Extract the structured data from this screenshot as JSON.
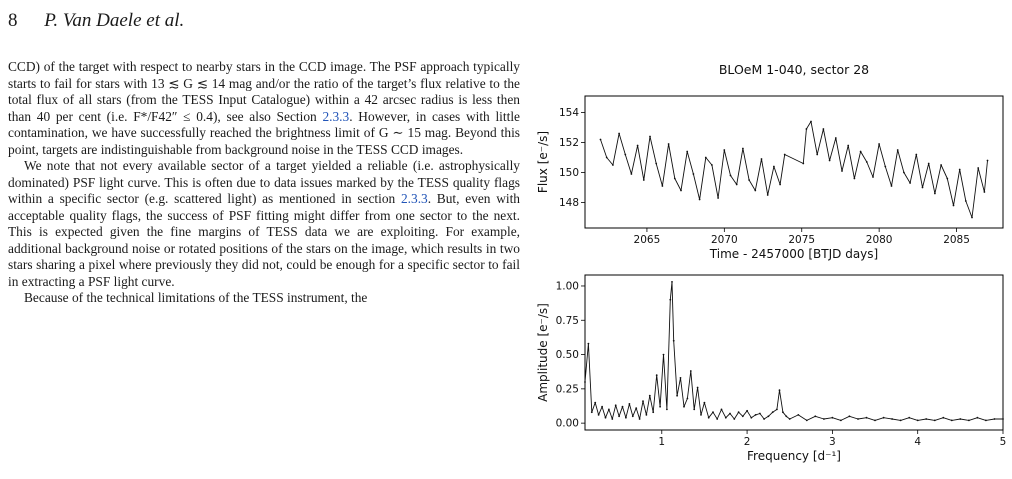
{
  "header": {
    "page_number": "8",
    "authors": "P. Van Daele et al."
  },
  "body": {
    "p1_a": "CCD) of the target with respect to nearby stars in the CCD image. The PSF approach typically starts to fail for stars with 13 ≲ G ≲ 14 mag and/or the ratio of the target’s flux relative to the total flux of all stars (from the TESS Input Catalogue) within a 42 arcsec radius is less then than 40 per cent (i.e. F*/F42″ ≤ 0.4), see also Section ",
    "p1_ref": "2.3.3",
    "p1_b": ". However, in cases with little contamination, we have successfully reached the brightness limit of G ∼ 15 mag. Beyond this point, targets are indistinguishable from background noise in the TESS CCD images.",
    "p2_a": "We note that not every available sector of a target yielded a reliable (i.e. astrophysically dominated) PSF light curve. This is often due to data issues marked by the TESS quality flags within a specific sector (e.g. scattered light) as mentioned in section ",
    "p2_ref": "2.3.3",
    "p2_b": ". But, even with acceptable quality flags, the success of PSF fitting might differ from one sector to the next. This is expected given the fine margins of TESS data we are exploiting. For example, additional background noise or rotated positions of the stars on the image, which results in two stars sharing a pixel where previously they did not, could be enough for a specific sector to fail in extracting a PSF light curve.",
    "p3": "Because of the technical limitations of the TESS instrument, the"
  },
  "chart_data": [
    {
      "type": "line",
      "title": "BLOeM 1-040, sector 28",
      "xlabel": "Time - 2457000 [BTJD days]",
      "ylabel": "Flux [e⁻/s]",
      "xlim": [
        2061,
        2088
      ],
      "ylim": [
        146.3,
        155.1
      ],
      "xticks": [
        2065,
        2070,
        2075,
        2080,
        2085
      ],
      "yticks": [
        148,
        150,
        152,
        154
      ],
      "grid": false,
      "note": "dense light curve; gap between ~2073.9 and ~2075.1",
      "x": [
        2062.0,
        2062.4,
        2062.8,
        2063.2,
        2063.6,
        2064.0,
        2064.4,
        2064.8,
        2065.2,
        2065.6,
        2066.0,
        2066.4,
        2066.8,
        2067.2,
        2067.6,
        2068.0,
        2068.4,
        2068.8,
        2069.2,
        2069.6,
        2070.0,
        2070.4,
        2070.8,
        2071.2,
        2071.6,
        2072.0,
        2072.4,
        2072.8,
        2073.2,
        2073.6,
        2073.9,
        2075.1,
        2075.3,
        2075.6,
        2076.0,
        2076.4,
        2076.8,
        2077.2,
        2077.6,
        2078.0,
        2078.4,
        2078.8,
        2079.2,
        2079.6,
        2080.0,
        2080.4,
        2080.8,
        2081.2,
        2081.6,
        2082.0,
        2082.4,
        2082.8,
        2083.2,
        2083.6,
        2084.0,
        2084.4,
        2084.8,
        2085.2,
        2085.6,
        2086.0,
        2086.4,
        2086.8,
        2087.0
      ],
      "y": [
        152.2,
        151.0,
        150.5,
        152.6,
        151.2,
        149.9,
        151.8,
        149.5,
        152.4,
        150.6,
        149.1,
        151.9,
        149.6,
        148.8,
        151.4,
        149.9,
        148.2,
        151.0,
        150.5,
        148.3,
        151.5,
        149.8,
        149.2,
        151.6,
        149.5,
        148.8,
        150.9,
        148.5,
        150.4,
        149.2,
        151.2,
        150.6,
        152.9,
        153.4,
        151.2,
        152.9,
        150.8,
        152.3,
        150.1,
        151.8,
        149.6,
        151.4,
        150.7,
        149.7,
        151.9,
        150.4,
        149.1,
        151.5,
        150.0,
        149.3,
        151.2,
        149.0,
        150.6,
        148.6,
        150.5,
        149.6,
        147.8,
        150.2,
        148.1,
        147.0,
        150.3,
        148.7,
        150.8
      ]
    },
    {
      "type": "line",
      "xlabel": "Frequency [d⁻¹]",
      "ylabel": "Amplitude [e⁻/s]",
      "xlim": [
        0.1,
        5.0
      ],
      "ylim": [
        -0.05,
        1.08
      ],
      "xticks": [
        1,
        2,
        3,
        4,
        5
      ],
      "yticks": [
        0.0,
        0.25,
        0.5,
        0.75,
        1.0
      ],
      "grid": false,
      "x": [
        0.1,
        0.14,
        0.18,
        0.22,
        0.26,
        0.3,
        0.34,
        0.38,
        0.42,
        0.46,
        0.5,
        0.54,
        0.58,
        0.62,
        0.66,
        0.7,
        0.74,
        0.78,
        0.82,
        0.86,
        0.9,
        0.94,
        0.98,
        1.02,
        1.06,
        1.1,
        1.12,
        1.14,
        1.18,
        1.22,
        1.26,
        1.3,
        1.34,
        1.38,
        1.42,
        1.46,
        1.5,
        1.55,
        1.6,
        1.65,
        1.7,
        1.75,
        1.8,
        1.85,
        1.9,
        1.95,
        2.0,
        2.05,
        2.1,
        2.15,
        2.2,
        2.25,
        2.3,
        2.35,
        2.38,
        2.42,
        2.46,
        2.5,
        2.6,
        2.7,
        2.8,
        2.9,
        3.0,
        3.1,
        3.2,
        3.3,
        3.4,
        3.5,
        3.6,
        3.7,
        3.8,
        3.9,
        4.0,
        4.1,
        4.2,
        4.3,
        4.4,
        4.5,
        4.6,
        4.7,
        4.8,
        4.9,
        5.0
      ],
      "y": [
        0.3,
        0.58,
        0.08,
        0.15,
        0.06,
        0.12,
        0.04,
        0.1,
        0.03,
        0.13,
        0.05,
        0.12,
        0.04,
        0.14,
        0.05,
        0.11,
        0.03,
        0.16,
        0.06,
        0.2,
        0.08,
        0.35,
        0.12,
        0.5,
        0.1,
        0.9,
        1.03,
        0.6,
        0.2,
        0.33,
        0.12,
        0.18,
        0.38,
        0.1,
        0.26,
        0.06,
        0.15,
        0.04,
        0.08,
        0.03,
        0.1,
        0.04,
        0.07,
        0.03,
        0.08,
        0.05,
        0.09,
        0.04,
        0.06,
        0.07,
        0.03,
        0.05,
        0.08,
        0.1,
        0.24,
        0.08,
        0.05,
        0.03,
        0.06,
        0.02,
        0.05,
        0.03,
        0.04,
        0.02,
        0.05,
        0.03,
        0.04,
        0.02,
        0.04,
        0.03,
        0.02,
        0.04,
        0.02,
        0.03,
        0.02,
        0.04,
        0.02,
        0.03,
        0.02,
        0.04,
        0.02,
        0.03,
        0.03
      ]
    }
  ]
}
